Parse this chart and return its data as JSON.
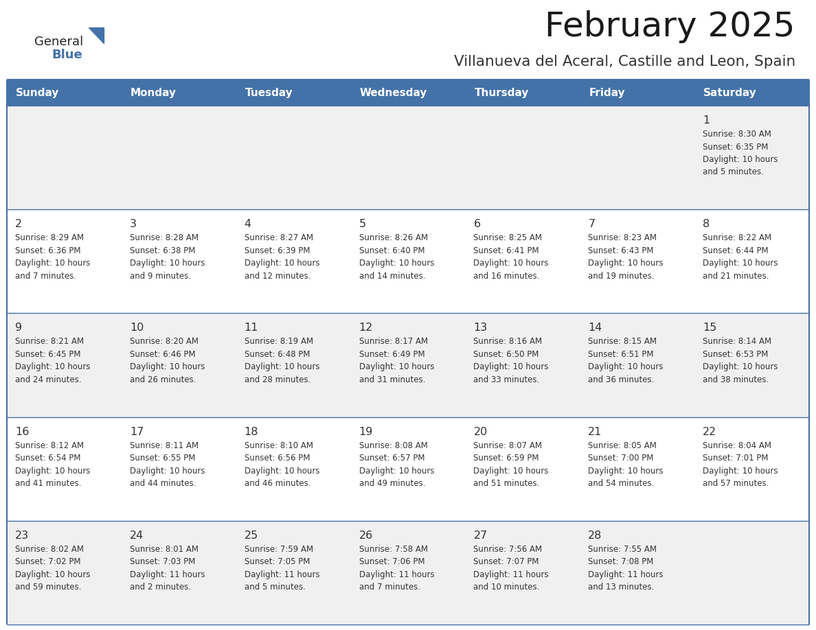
{
  "title": "February 2025",
  "subtitle": "Villanueva del Aceral, Castille and Leon, Spain",
  "days_of_week": [
    "Sunday",
    "Monday",
    "Tuesday",
    "Wednesday",
    "Thursday",
    "Friday",
    "Saturday"
  ],
  "header_bg": "#4472a8",
  "header_text": "#ffffff",
  "row_bg": "#f0f0f0",
  "row_bg2": "#ffffff",
  "cell_border_color": "#4472a8",
  "day_number_color": "#333333",
  "text_color": "#333333",
  "logo_general_color": "#222222",
  "logo_blue_color": "#4472a8",
  "calendar_data": [
    [
      null,
      null,
      null,
      null,
      null,
      null,
      {
        "day": 1,
        "sunrise": "8:30 AM",
        "sunset": "6:35 PM",
        "daylight": "10 hours",
        "daylight2": "and 5 minutes."
      }
    ],
    [
      {
        "day": 2,
        "sunrise": "8:29 AM",
        "sunset": "6:36 PM",
        "daylight": "10 hours",
        "daylight2": "and 7 minutes."
      },
      {
        "day": 3,
        "sunrise": "8:28 AM",
        "sunset": "6:38 PM",
        "daylight": "10 hours",
        "daylight2": "and 9 minutes."
      },
      {
        "day": 4,
        "sunrise": "8:27 AM",
        "sunset": "6:39 PM",
        "daylight": "10 hours",
        "daylight2": "and 12 minutes."
      },
      {
        "day": 5,
        "sunrise": "8:26 AM",
        "sunset": "6:40 PM",
        "daylight": "10 hours",
        "daylight2": "and 14 minutes."
      },
      {
        "day": 6,
        "sunrise": "8:25 AM",
        "sunset": "6:41 PM",
        "daylight": "10 hours",
        "daylight2": "and 16 minutes."
      },
      {
        "day": 7,
        "sunrise": "8:23 AM",
        "sunset": "6:43 PM",
        "daylight": "10 hours",
        "daylight2": "and 19 minutes."
      },
      {
        "day": 8,
        "sunrise": "8:22 AM",
        "sunset": "6:44 PM",
        "daylight": "10 hours",
        "daylight2": "and 21 minutes."
      }
    ],
    [
      {
        "day": 9,
        "sunrise": "8:21 AM",
        "sunset": "6:45 PM",
        "daylight": "10 hours",
        "daylight2": "and 24 minutes."
      },
      {
        "day": 10,
        "sunrise": "8:20 AM",
        "sunset": "6:46 PM",
        "daylight": "10 hours",
        "daylight2": "and 26 minutes."
      },
      {
        "day": 11,
        "sunrise": "8:19 AM",
        "sunset": "6:48 PM",
        "daylight": "10 hours",
        "daylight2": "and 28 minutes."
      },
      {
        "day": 12,
        "sunrise": "8:17 AM",
        "sunset": "6:49 PM",
        "daylight": "10 hours",
        "daylight2": "and 31 minutes."
      },
      {
        "day": 13,
        "sunrise": "8:16 AM",
        "sunset": "6:50 PM",
        "daylight": "10 hours",
        "daylight2": "and 33 minutes."
      },
      {
        "day": 14,
        "sunrise": "8:15 AM",
        "sunset": "6:51 PM",
        "daylight": "10 hours",
        "daylight2": "and 36 minutes."
      },
      {
        "day": 15,
        "sunrise": "8:14 AM",
        "sunset": "6:53 PM",
        "daylight": "10 hours",
        "daylight2": "and 38 minutes."
      }
    ],
    [
      {
        "day": 16,
        "sunrise": "8:12 AM",
        "sunset": "6:54 PM",
        "daylight": "10 hours",
        "daylight2": "and 41 minutes."
      },
      {
        "day": 17,
        "sunrise": "8:11 AM",
        "sunset": "6:55 PM",
        "daylight": "10 hours",
        "daylight2": "and 44 minutes."
      },
      {
        "day": 18,
        "sunrise": "8:10 AM",
        "sunset": "6:56 PM",
        "daylight": "10 hours",
        "daylight2": "and 46 minutes."
      },
      {
        "day": 19,
        "sunrise": "8:08 AM",
        "sunset": "6:57 PM",
        "daylight": "10 hours",
        "daylight2": "and 49 minutes."
      },
      {
        "day": 20,
        "sunrise": "8:07 AM",
        "sunset": "6:59 PM",
        "daylight": "10 hours",
        "daylight2": "and 51 minutes."
      },
      {
        "day": 21,
        "sunrise": "8:05 AM",
        "sunset": "7:00 PM",
        "daylight": "10 hours",
        "daylight2": "and 54 minutes."
      },
      {
        "day": 22,
        "sunrise": "8:04 AM",
        "sunset": "7:01 PM",
        "daylight": "10 hours",
        "daylight2": "and 57 minutes."
      }
    ],
    [
      {
        "day": 23,
        "sunrise": "8:02 AM",
        "sunset": "7:02 PM",
        "daylight": "10 hours",
        "daylight2": "and 59 minutes."
      },
      {
        "day": 24,
        "sunrise": "8:01 AM",
        "sunset": "7:03 PM",
        "daylight": "11 hours",
        "daylight2": "and 2 minutes."
      },
      {
        "day": 25,
        "sunrise": "7:59 AM",
        "sunset": "7:05 PM",
        "daylight": "11 hours",
        "daylight2": "and 5 minutes."
      },
      {
        "day": 26,
        "sunrise": "7:58 AM",
        "sunset": "7:06 PM",
        "daylight": "11 hours",
        "daylight2": "and 7 minutes."
      },
      {
        "day": 27,
        "sunrise": "7:56 AM",
        "sunset": "7:07 PM",
        "daylight": "11 hours",
        "daylight2": "and 10 minutes."
      },
      {
        "day": 28,
        "sunrise": "7:55 AM",
        "sunset": "7:08 PM",
        "daylight": "11 hours",
        "daylight2": "and 13 minutes."
      },
      null
    ]
  ]
}
